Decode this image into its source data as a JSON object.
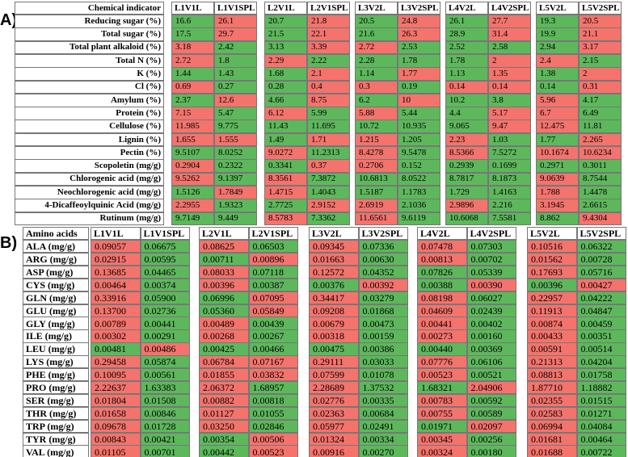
{
  "palette": {
    "r": "#f4736c",
    "g": "#5db85c"
  },
  "panels": [
    {
      "label": "A)",
      "header": [
        "Chemical indicator",
        "L1V1L",
        "L1V1SPL",
        "L2V1L",
        "L2V1SPL",
        "L3V2L",
        "L3V2SPL",
        "L4V2L",
        "L4V2SPL",
        "L5V2L",
        "L5V2SPL"
      ],
      "rows": [
        {
          "name": "Reducing sugar (%)",
          "values": [
            "16.6",
            "26.1",
            "20.7",
            "21.8",
            "20.5",
            "24.8",
            "26.1",
            "27.7",
            "19.3",
            "20.5"
          ],
          "fills": "grgrgrgrgr"
        },
        {
          "name": "Total sugar (%)",
          "values": [
            "17.5",
            "29.7",
            "21.5",
            "22.1",
            "21.6",
            "26.3",
            "28.9",
            "31.4",
            "19.9",
            "21.1"
          ],
          "fills": "grgrgrgrgr"
        },
        {
          "name": "Total plant alkaloid (%)",
          "values": [
            "3.18",
            "2.42",
            "3.13",
            "3.39",
            "2.72",
            "2.53",
            "2.52",
            "2.58",
            "2.94",
            "3.17"
          ],
          "fills": "rggrrggggr"
        },
        {
          "name": "Total N (%)",
          "values": [
            "2.72",
            "1.8",
            "2.29",
            "2.22",
            "2.28",
            "1.78",
            "1.78",
            "2",
            "2.4",
            "2.15"
          ],
          "fills": "rgrggggrrg"
        },
        {
          "name": "K (%)",
          "values": [
            "1.44",
            "1.43",
            "1.68",
            "2.1",
            "1.14",
            "1.77",
            "1.13",
            "1.35",
            "1.38",
            "2"
          ],
          "fills": "gggrgrgrgr"
        },
        {
          "name": "Cl (%)",
          "values": [
            "0.69",
            "0.27",
            "0.28",
            "0.4",
            "0.3",
            "0.19",
            "0.14",
            "0.14",
            "0.14",
            "0.31"
          ],
          "fills": "rggrrgrrgr"
        },
        {
          "name": "Amylum (%)",
          "values": [
            "2.37",
            "12.6",
            "4.66",
            "8.75",
            "6.2",
            "10",
            "10.2",
            "3.8",
            "5.96",
            "4.17"
          ],
          "fills": "grgrgrggrg"
        },
        {
          "name": "Protein (%)",
          "values": [
            "7.15",
            "5.47",
            "6.12",
            "5.99",
            "5.88",
            "5.44",
            "4.4",
            "5.17",
            "6.7",
            "6.49"
          ],
          "fills": "rgrgrggrrg"
        },
        {
          "name": "Cellulose (%)",
          "values": [
            "11.985",
            "9.775",
            "11.43",
            "11.695",
            "10.72",
            "10.935",
            "9.065",
            "9.47",
            "12.475",
            "11.81"
          ],
          "fills": "rggggggrrg"
        },
        {
          "name": "Lignin (%)",
          "values": [
            "1.655",
            "1.555",
            "1.49",
            "1.71",
            "1.215",
            "1.205",
            "2.23",
            "1.03",
            "1.77",
            "2.265"
          ],
          "fills": "rrgrrgrggr"
        },
        {
          "name": "Pectin (%)",
          "values": [
            "9.5107",
            "8.0252",
            "9.0272",
            "11.2313",
            "8.4278",
            "9.5478",
            "8.5366",
            "7.5272",
            "10.1674",
            "10.6234"
          ],
          "fills": "ggrgrgrgrr"
        },
        {
          "name": "Scopoletin (mg/g)",
          "values": [
            "0.2904",
            "0.2322",
            "0.3341",
            "0.37",
            "0.2706",
            "0.152",
            "0.2939",
            "0.1699",
            "0.2971",
            "0.3011"
          ],
          "fills": "rggrrggggg"
        },
        {
          "name": "Chlorogenic acid (mg/g)",
          "values": [
            "9.5262",
            "9.1397",
            "8.3561",
            "7.3872",
            "10.6813",
            "8.0522",
            "8.7817",
            "8.1873",
            "9.0639",
            "8.7544"
          ],
          "fills": "rgrgggggrg"
        },
        {
          "name": "Neochlorogenic acid (mg/g)",
          "values": [
            "1.5126",
            "1.7849",
            "1.4715",
            "1.4043",
            "1.5187",
            "1.1783",
            "1.729",
            "1.4163",
            "1.788",
            "1.4478"
          ],
          "fills": "grrgggggrg"
        },
        {
          "name": "4-Dicaffeoylquinic Acid (mg/g)",
          "values": [
            "2.2955",
            "1.9323",
            "2.7725",
            "2.9152",
            "2.6919",
            "2.1036",
            "2.9896",
            "2.216",
            "3.1945",
            "2.6615"
          ],
          "fills": "rggrrgrgrg"
        },
        {
          "name": "Rutinum (mg/g)",
          "values": [
            "9.7149",
            "9.449",
            "8.5783",
            "7.3362",
            "11.6561",
            "9.6119",
            "10.6068",
            "7.5581",
            "8.862",
            "9.4304"
          ],
          "fills": "ggrgrggggr"
        }
      ]
    },
    {
      "label": "B)",
      "header": [
        "Amino acids",
        "L1V1L",
        "L1V1SPL",
        "L2V1L",
        "L2V1SPL",
        "L3V2L",
        "L3V2SPL",
        "L4V2L",
        "L4V2SPL",
        "L5V2L",
        "L5V2SPL"
      ],
      "rows": [
        {
          "name": "ALA (mg/g)",
          "values": [
            "0.09057",
            "0.06675",
            "0.08625",
            "0.06503",
            "0.09345",
            "0.07336",
            "0.07478",
            "0.07303",
            "0.10516",
            "0.06322"
          ],
          "fills": "rgrgrgrgrg"
        },
        {
          "name": "ARG (mg/g)",
          "values": [
            "0.02915",
            "0.00595",
            "0.00711",
            "0.00896",
            "0.01663",
            "0.00630",
            "0.00813",
            "0.00702",
            "0.01562",
            "0.00728"
          ],
          "fills": "rggrrgrgrg"
        },
        {
          "name": "ASP (mg/g)",
          "values": [
            "0.13685",
            "0.04465",
            "0.08033",
            "0.07118",
            "0.12572",
            "0.04352",
            "0.07826",
            "0.05339",
            "0.17693",
            "0.05716"
          ],
          "fills": "rgrgrgggrg"
        },
        {
          "name": "CYS (mg/g)",
          "values": [
            "0.00464",
            "0.00374",
            "0.00396",
            "0.00387",
            "0.00376",
            "0.00392",
            "0.00388",
            "0.00390",
            "0.00396",
            "0.00427"
          ],
          "fills": "rgrggrgrgr"
        },
        {
          "name": "GLN (mg/g)",
          "values": [
            "0.33916",
            "0.05900",
            "0.06996",
            "0.07095",
            "0.34417",
            "0.03279",
            "0.08198",
            "0.06027",
            "0.22957",
            "0.04222"
          ],
          "fills": "rggrrgrgrg"
        },
        {
          "name": "GLU (mg/g)",
          "values": [
            "0.13700",
            "0.02736",
            "0.05360",
            "0.05849",
            "0.09208",
            "0.01868",
            "0.04609",
            "0.02439",
            "0.11913",
            "0.04847"
          ],
          "fills": "rggrrgrgrg"
        },
        {
          "name": "GLY (mg/g)",
          "values": [
            "0.00789",
            "0.00441",
            "0.00489",
            "0.00439",
            "0.00679",
            "0.00473",
            "0.00441",
            "0.00402",
            "0.00874",
            "0.00459"
          ],
          "fills": "rgrgrgrgrg"
        },
        {
          "name": "ILE (mg/g)",
          "values": [
            "0.00302",
            "0.00291",
            "0.00268",
            "0.00267",
            "0.00318",
            "0.00159",
            "0.00273",
            "0.00160",
            "0.00433",
            "0.00351"
          ],
          "fills": "rgrgrgrgrg"
        },
        {
          "name": "LEU (mg/g)",
          "values": [
            "0.00481",
            "0.00486",
            "0.00425",
            "0.00466",
            "0.00475",
            "0.00386",
            "0.00440",
            "0.00369",
            "0.00591",
            "0.00514"
          ],
          "fills": "grggggggrg"
        },
        {
          "name": "LYS (mg/g)",
          "values": [
            "0.29458",
            "0.05874",
            "0.06784",
            "0.07167",
            "0.29111",
            "0.03033",
            "0.07776",
            "0.06106",
            "0.21313",
            "0.04204"
          ],
          "fills": "rgrrrgrgrg"
        },
        {
          "name": "PHE (mg/g)",
          "values": [
            "0.10095",
            "0.00561",
            "0.01855",
            "0.03832",
            "0.07599",
            "0.01078",
            "0.00523",
            "0.00521",
            "0.08813",
            "0.01758"
          ],
          "fills": "rgrrrgrgrg"
        },
        {
          "name": "PRO (mg/g)",
          "values": [
            "2.22637",
            "1.63383",
            "2.06372",
            "1.68957",
            "2.28689",
            "1.37532",
            "1.68321",
            "2.04906",
            "1.87710",
            "1.18882"
          ],
          "fills": "rgrgrggrrg"
        },
        {
          "name": "SER (mg/g)",
          "values": [
            "0.01804",
            "0.01508",
            "0.00882",
            "0.00818",
            "0.02776",
            "0.00335",
            "0.00783",
            "0.00592",
            "0.02355",
            "0.01515"
          ],
          "fills": "rgrgrgrgrg"
        },
        {
          "name": "THR (mg/g)",
          "values": [
            "0.01658",
            "0.00846",
            "0.01127",
            "0.01055",
            "0.02363",
            "0.00684",
            "0.00755",
            "0.00589",
            "0.02583",
            "0.01271"
          ],
          "fills": "rgrgrgrgrg"
        },
        {
          "name": "TRP (mg/g)",
          "values": [
            "0.09678",
            "0.01728",
            "0.03250",
            "0.02846",
            "0.05977",
            "0.02491",
            "0.01971",
            "0.02097",
            "0.06994",
            "0.04084"
          ],
          "fills": "rgrgrggrrg"
        },
        {
          "name": "TYR (mg/g)",
          "values": [
            "0.00843",
            "0.00421",
            "0.00354",
            "0.00506",
            "0.01324",
            "0.00334",
            "0.00345",
            "0.00256",
            "0.01681",
            "0.00464"
          ],
          "fills": "rggrrgrgrg"
        },
        {
          "name": "VAL (mg/g)",
          "values": [
            "0.01105",
            "0.00701",
            "0.00442",
            "0.00523",
            "0.00916",
            "0.00270",
            "0.00324",
            "0.00180",
            "0.01688",
            "0.00722"
          ],
          "fills": "rggrrgrgrg"
        }
      ]
    }
  ]
}
